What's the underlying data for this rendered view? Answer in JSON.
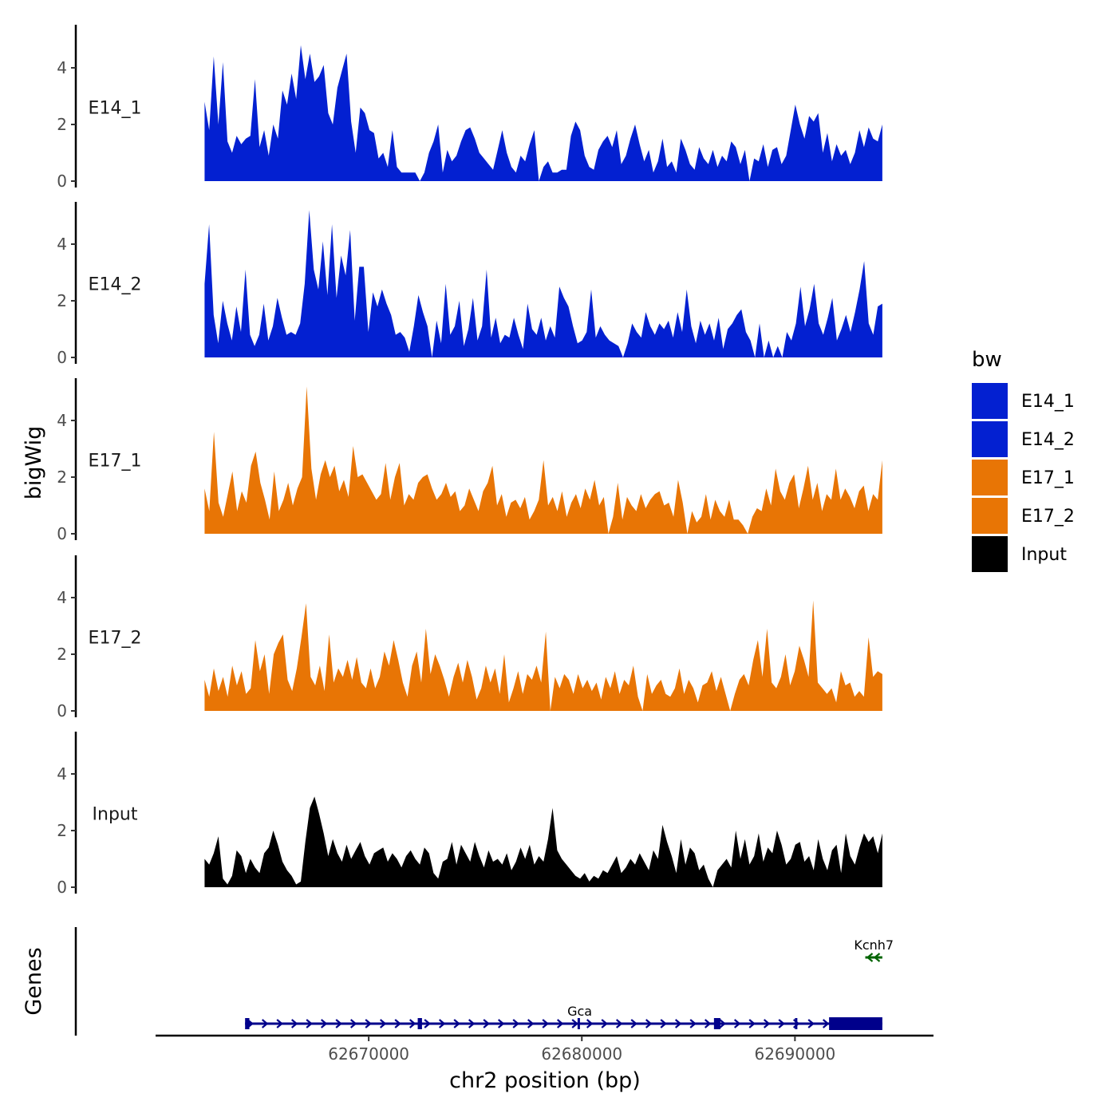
{
  "chart_data": {
    "type": "area",
    "ylabel": "bigWig",
    "genes_label": "Genes",
    "xlabel": "chr2 position (bp)",
    "ylim": [
      0,
      5.4
    ],
    "yticks": [
      "0",
      "2",
      "4"
    ],
    "xlim": [
      62660000,
      62696500
    ],
    "xticks": [
      {
        "value": 62670000,
        "label": "62670000"
      },
      {
        "value": 62680000,
        "label": "62680000"
      },
      {
        "value": 62690000,
        "label": "62690000"
      }
    ],
    "track_start": 62662300,
    "track_end": 62694100,
    "series": [
      {
        "name": "E14_1",
        "color": "#0320d1",
        "values": [
          2.8,
          1.8,
          4.4,
          2.0,
          4.2,
          1.4,
          1.0,
          1.6,
          1.3,
          1.5,
          1.6,
          3.6,
          1.2,
          1.8,
          0.9,
          2.0,
          1.5,
          3.2,
          2.7,
          3.8,
          2.9,
          4.8,
          3.6,
          4.5,
          3.5,
          3.7,
          4.1,
          2.4,
          2.0,
          3.3,
          3.9,
          4.5,
          2.1,
          1.0,
          2.6,
          2.4,
          1.8,
          1.7,
          0.8,
          1.0,
          0.5,
          1.8,
          0.5,
          0.3,
          0.3,
          0.3,
          0.3,
          0.0,
          0.3,
          1.0,
          1.4,
          2.0,
          0.3,
          1.1,
          0.7,
          0.9,
          1.4,
          1.8,
          1.9,
          1.5,
          1.0,
          0.8,
          0.6,
          0.4,
          1.1,
          1.8,
          1.0,
          0.5,
          0.3,
          0.9,
          0.7,
          1.3,
          1.8,
          0.0,
          0.5,
          0.7,
          0.3,
          0.3,
          0.4,
          0.4,
          1.6,
          2.1,
          1.8,
          0.9,
          0.5,
          0.4,
          1.1,
          1.4,
          1.6,
          1.2,
          1.8,
          0.6,
          0.9,
          1.5,
          2.0,
          1.3,
          0.7,
          1.1,
          0.3,
          0.7,
          1.5,
          0.5,
          0.7,
          0.3,
          1.5,
          1.1,
          0.6,
          0.4,
          1.2,
          0.8,
          0.6,
          1.1,
          0.5,
          0.9,
          0.7,
          1.4,
          1.2,
          0.6,
          1.1,
          0.0,
          0.8,
          0.7,
          1.3,
          0.5,
          1.1,
          1.2,
          0.6,
          0.9,
          1.8,
          2.7,
          2.0,
          1.5,
          2.3,
          2.1,
          2.4,
          1.0,
          1.7,
          0.7,
          1.3,
          0.9,
          1.1,
          0.6,
          1.0,
          1.8,
          1.2,
          1.9,
          1.5,
          1.4,
          2.0
        ]
      },
      {
        "name": "E14_2",
        "color": "#0320d1",
        "values": [
          2.6,
          4.7,
          1.5,
          0.5,
          2.0,
          1.2,
          0.6,
          1.8,
          0.9,
          3.1,
          0.8,
          0.4,
          0.8,
          1.9,
          0.6,
          1.1,
          2.1,
          1.4,
          0.8,
          0.9,
          0.8,
          1.2,
          2.6,
          5.2,
          3.1,
          2.4,
          4.1,
          2.2,
          4.7,
          2.1,
          3.6,
          2.9,
          4.5,
          1.3,
          3.2,
          3.2,
          0.9,
          2.3,
          1.8,
          2.4,
          1.9,
          1.5,
          0.8,
          0.9,
          0.7,
          0.2,
          1.1,
          2.2,
          1.6,
          1.1,
          0.0,
          1.3,
          0.5,
          2.6,
          0.8,
          1.1,
          2.0,
          0.4,
          1.0,
          2.1,
          0.6,
          1.1,
          3.1,
          0.7,
          1.4,
          0.5,
          0.8,
          0.7,
          1.4,
          0.8,
          0.3,
          1.9,
          1.0,
          0.8,
          1.4,
          0.6,
          1.1,
          0.7,
          2.5,
          2.1,
          1.8,
          1.1,
          0.5,
          0.6,
          0.9,
          2.4,
          0.7,
          1.1,
          0.8,
          0.6,
          0.5,
          0.4,
          0.0,
          0.5,
          1.2,
          0.9,
          0.7,
          1.6,
          1.1,
          0.8,
          1.2,
          1.0,
          1.3,
          0.7,
          1.6,
          0.9,
          2.4,
          1.1,
          0.5,
          1.3,
          0.8,
          1.2,
          0.6,
          1.4,
          0.3,
          1.0,
          1.2,
          1.5,
          1.7,
          0.9,
          0.6,
          0.0,
          1.2,
          0.0,
          0.6,
          0.0,
          0.4,
          0.0,
          0.9,
          0.6,
          1.2,
          2.5,
          1.1,
          1.7,
          2.6,
          1.2,
          0.8,
          1.4,
          2.1,
          0.6,
          1.0,
          1.5,
          0.9,
          1.6,
          2.4,
          3.4,
          1.2,
          0.8,
          1.8,
          1.9
        ]
      },
      {
        "name": "E17_1",
        "color": "#e87505",
        "values": [
          1.6,
          0.8,
          3.6,
          1.1,
          0.6,
          1.4,
          2.2,
          0.8,
          1.5,
          1.1,
          2.4,
          2.9,
          1.8,
          1.2,
          0.5,
          2.2,
          0.8,
          1.2,
          1.8,
          1.0,
          1.6,
          2.0,
          5.2,
          2.3,
          1.2,
          2.1,
          2.6,
          2.0,
          2.4,
          1.5,
          1.9,
          1.3,
          3.1,
          2.0,
          2.1,
          1.8,
          1.5,
          1.2,
          1.4,
          2.5,
          1.2,
          2.0,
          2.5,
          1.0,
          1.4,
          1.2,
          1.8,
          2.0,
          2.1,
          1.6,
          1.2,
          1.4,
          1.8,
          1.3,
          1.5,
          0.8,
          1.0,
          1.6,
          1.2,
          0.8,
          1.5,
          1.8,
          2.4,
          1.0,
          1.4,
          0.6,
          1.1,
          1.2,
          0.9,
          1.3,
          0.5,
          0.8,
          1.2,
          2.6,
          1.0,
          1.3,
          0.8,
          1.5,
          0.6,
          1.1,
          1.4,
          0.9,
          1.6,
          1.2,
          1.9,
          1.0,
          1.3,
          0.0,
          0.6,
          1.8,
          0.5,
          1.3,
          1.0,
          0.8,
          1.4,
          0.9,
          1.2,
          1.4,
          1.5,
          1.0,
          1.1,
          0.6,
          1.9,
          1.1,
          0.0,
          0.8,
          0.4,
          0.6,
          1.4,
          0.5,
          1.2,
          0.8,
          0.6,
          1.2,
          0.5,
          0.5,
          0.3,
          0.0,
          0.6,
          0.9,
          0.8,
          1.6,
          1.0,
          2.3,
          1.5,
          1.2,
          1.8,
          2.1,
          0.9,
          1.6,
          2.4,
          1.2,
          1.8,
          0.8,
          1.4,
          1.2,
          2.3,
          1.2,
          1.6,
          1.3,
          0.9,
          1.5,
          1.7,
          0.8,
          1.4,
          1.2,
          2.6
        ]
      },
      {
        "name": "E17_2",
        "color": "#e87505",
        "values": [
          1.1,
          0.5,
          1.5,
          0.7,
          1.2,
          0.5,
          1.6,
          0.9,
          1.4,
          0.6,
          0.8,
          2.5,
          1.4,
          2.0,
          0.6,
          2.0,
          2.4,
          2.7,
          1.1,
          0.7,
          1.5,
          2.6,
          3.8,
          1.2,
          0.9,
          1.6,
          0.7,
          2.7,
          1.0,
          1.5,
          1.2,
          1.8,
          1.1,
          1.9,
          1.0,
          0.8,
          1.5,
          0.8,
          1.2,
          2.1,
          1.6,
          2.5,
          1.8,
          1.0,
          0.5,
          1.6,
          2.1,
          1.0,
          2.9,
          1.3,
          2.0,
          1.6,
          1.1,
          0.5,
          1.2,
          1.7,
          1.0,
          1.8,
          1.2,
          0.4,
          0.8,
          1.6,
          1.0,
          1.5,
          0.6,
          2.0,
          0.3,
          0.8,
          1.4,
          0.6,
          1.3,
          1.1,
          1.6,
          1.0,
          2.8,
          0.0,
          1.2,
          0.8,
          1.3,
          1.1,
          0.6,
          1.3,
          0.8,
          1.1,
          0.7,
          1.0,
          0.4,
          1.2,
          0.8,
          1.4,
          0.6,
          1.1,
          0.9,
          1.6,
          0.5,
          0.0,
          1.3,
          0.6,
          0.9,
          1.1,
          0.6,
          0.5,
          0.8,
          1.5,
          0.6,
          1.1,
          0.8,
          0.3,
          0.9,
          1.0,
          1.4,
          0.7,
          1.2,
          0.6,
          0.0,
          0.6,
          1.1,
          1.3,
          0.9,
          1.8,
          2.5,
          1.2,
          2.9,
          1.0,
          0.8,
          1.2,
          2.0,
          0.9,
          1.4,
          2.3,
          1.8,
          1.2,
          3.9,
          1.0,
          0.8,
          0.6,
          0.8,
          0.3,
          1.4,
          0.9,
          1.0,
          0.5,
          0.7,
          0.5,
          2.6,
          1.2,
          1.4,
          1.3
        ]
      },
      {
        "name": "Input",
        "color": "#000000",
        "values": [
          1.0,
          0.8,
          1.2,
          1.8,
          0.3,
          0.1,
          0.4,
          1.3,
          1.1,
          0.5,
          1.0,
          0.7,
          0.5,
          1.2,
          1.4,
          2.0,
          1.5,
          0.9,
          0.6,
          0.4,
          0.1,
          0.2,
          1.6,
          2.8,
          3.2,
          2.6,
          1.9,
          1.1,
          1.7,
          1.2,
          0.9,
          1.5,
          1.0,
          1.3,
          1.6,
          1.1,
          0.8,
          1.2,
          1.3,
          1.4,
          0.9,
          1.2,
          1.0,
          0.7,
          1.1,
          1.3,
          1.0,
          0.8,
          1.4,
          1.2,
          0.5,
          0.3,
          0.9,
          1.0,
          1.6,
          0.8,
          1.5,
          1.2,
          0.9,
          1.6,
          1.1,
          0.7,
          1.3,
          0.9,
          1.0,
          0.8,
          1.2,
          0.6,
          0.9,
          1.4,
          1.0,
          1.5,
          0.8,
          1.1,
          0.9,
          1.7,
          2.8,
          1.3,
          1.0,
          0.8,
          0.6,
          0.4,
          0.3,
          0.5,
          0.2,
          0.4,
          0.3,
          0.6,
          0.5,
          0.8,
          1.1,
          0.5,
          0.7,
          1.0,
          0.8,
          1.2,
          0.9,
          0.6,
          1.3,
          1.0,
          2.2,
          1.6,
          1.1,
          0.5,
          1.7,
          0.8,
          1.4,
          1.2,
          0.6,
          0.8,
          0.3,
          0.0,
          0.6,
          0.8,
          1.0,
          0.7,
          2.0,
          1.0,
          1.7,
          0.8,
          1.1,
          1.9,
          0.9,
          1.4,
          1.2,
          2.0,
          1.5,
          0.8,
          1.0,
          1.5,
          1.6,
          0.9,
          1.1,
          0.6,
          1.7,
          1.0,
          0.6,
          1.3,
          1.5,
          0.5,
          1.9,
          1.1,
          0.8,
          1.4,
          1.9,
          1.6,
          1.8,
          1.2,
          1.9
        ]
      }
    ],
    "legend": {
      "title": "bw",
      "items": [
        {
          "label": "E14_1",
          "color": "#0320d1"
        },
        {
          "label": "E14_2",
          "color": "#0320d1"
        },
        {
          "label": "E17_1",
          "color": "#e87505"
        },
        {
          "label": "E17_2",
          "color": "#e87505"
        },
        {
          "label": "Input",
          "color": "#000000"
        }
      ]
    },
    "genes": [
      {
        "name": "Gca",
        "strand": "+",
        "color": "#00008b",
        "start": 62664200,
        "end": 62694100,
        "label_pos": 62679900,
        "exons": [
          {
            "start": 62664200,
            "end": 62664400
          },
          {
            "start": 62672300,
            "end": 62672500
          },
          {
            "start": 62679800,
            "end": 62679900
          },
          {
            "start": 62686200,
            "end": 62686500
          },
          {
            "start": 62690000,
            "end": 62690100
          },
          {
            "start": 62691600,
            "end": 62694100
          }
        ]
      },
      {
        "name": "Kcnh7",
        "strand": "-",
        "color": "#006400",
        "start": 62693300,
        "end": 62694100,
        "label_pos": 62693700,
        "exons": []
      }
    ]
  }
}
